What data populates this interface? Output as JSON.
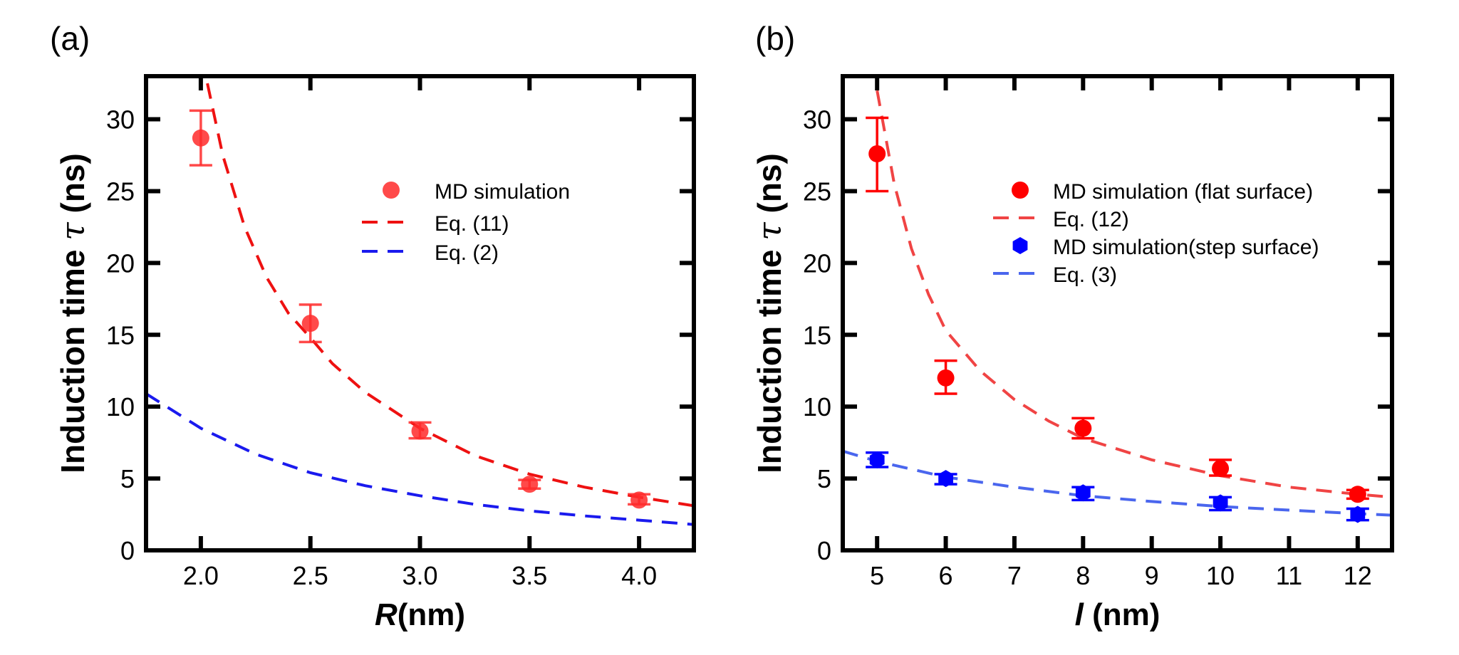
{
  "chart_data": [
    {
      "type": "scatter",
      "panel_label": "(a)",
      "title": "",
      "xlabel_italic": "R",
      "xlabel_rest": "(nm)",
      "ylabel": "Induction time",
      "ylabel_symbol": "τ",
      "ylabel_unit": "(ns)",
      "xlim": [
        1.75,
        4.25
      ],
      "ylim": [
        0,
        33
      ],
      "xticks": [
        2.0,
        2.5,
        3.0,
        3.5,
        4.0
      ],
      "xtick_labels": [
        "2.0",
        "2.5",
        "3.0",
        "3.5",
        "4.0"
      ],
      "yticks": [
        0,
        5,
        10,
        15,
        20,
        25,
        30
      ],
      "ytick_labels": [
        "0",
        "5",
        "10",
        "15",
        "20",
        "25",
        "30"
      ],
      "grid": false,
      "legend_position": "upper-center-right",
      "series": [
        {
          "name": "MD simulation",
          "kind": "points",
          "marker": "circle",
          "color": "#ff2a2a",
          "x": [
            2.0,
            2.5,
            3.0,
            3.5,
            4.0
          ],
          "y": [
            28.7,
            15.8,
            8.3,
            4.6,
            3.5
          ],
          "err_low": [
            26.8,
            14.5,
            7.8,
            4.3,
            3.2
          ],
          "err_high": [
            30.6,
            17.1,
            8.9,
            4.9,
            3.9
          ]
        },
        {
          "name": "Eq. (11)",
          "kind": "dashed-line",
          "color": "#ee1111",
          "x": [
            2.03,
            2.1,
            2.2,
            2.3,
            2.4,
            2.5,
            2.6,
            2.75,
            3.0,
            3.25,
            3.5,
            3.75,
            4.0,
            4.25
          ],
          "y": [
            32.5,
            27.5,
            22.5,
            19.0,
            16.5,
            14.8,
            13.0,
            11.0,
            8.5,
            6.6,
            5.3,
            4.4,
            3.7,
            3.1
          ]
        },
        {
          "name": "Eq. (2)",
          "kind": "dashed-line",
          "color": "#1a1aee",
          "x": [
            1.75,
            2.0,
            2.25,
            2.5,
            2.75,
            3.0,
            3.25,
            3.5,
            3.75,
            4.0,
            4.25
          ],
          "y": [
            10.9,
            8.5,
            6.7,
            5.4,
            4.5,
            3.8,
            3.2,
            2.75,
            2.4,
            2.1,
            1.8
          ]
        }
      ]
    },
    {
      "type": "scatter",
      "panel_label": "(b)",
      "title": "",
      "xlabel_italic": "l",
      "xlabel_rest": " (nm)",
      "ylabel": "Induction time",
      "ylabel_symbol": "τ",
      "ylabel_unit": "(ns)",
      "xlim": [
        4.5,
        12.5
      ],
      "ylim": [
        0,
        33
      ],
      "xticks": [
        5,
        6,
        7,
        8,
        9,
        10,
        11,
        12
      ],
      "xtick_labels": [
        "5",
        "6",
        "7",
        "8",
        "9",
        "10",
        "11",
        "12"
      ],
      "yticks": [
        0,
        5,
        10,
        15,
        20,
        25,
        30
      ],
      "ytick_labels": [
        "0",
        "5",
        "10",
        "15",
        "20",
        "25",
        "30"
      ],
      "grid": false,
      "legend_position": "upper-center-right",
      "series": [
        {
          "name": "MD simulation (flat surface)",
          "kind": "points",
          "marker": "circle",
          "color": "#ff0000",
          "x": [
            5,
            6,
            8,
            10,
            12
          ],
          "y": [
            27.6,
            12.0,
            8.5,
            5.7,
            3.9
          ],
          "err_low": [
            25.0,
            10.9,
            7.8,
            5.2,
            3.6
          ],
          "err_high": [
            30.1,
            13.2,
            9.2,
            6.3,
            4.2
          ]
        },
        {
          "name": "Eq. (12)",
          "kind": "dashed-line",
          "color": "#f04444",
          "x": [
            5.0,
            5.25,
            5.5,
            5.75,
            6.0,
            6.5,
            7.0,
            7.5,
            8.0,
            9.0,
            10.0,
            11.0,
            12.0,
            12.5
          ],
          "y": [
            32.0,
            25.5,
            21.0,
            17.8,
            15.3,
            12.5,
            10.5,
            9.0,
            7.8,
            6.3,
            5.2,
            4.4,
            3.9,
            3.7
          ]
        },
        {
          "name": "MD simulation(step surface)",
          "kind": "points",
          "marker": "hexagon",
          "color": "#0000ff",
          "x": [
            5,
            6,
            8,
            10,
            12
          ],
          "y": [
            6.3,
            5.0,
            4.0,
            3.3,
            2.5
          ],
          "err_low": [
            5.8,
            4.6,
            3.5,
            2.8,
            2.1
          ],
          "err_high": [
            6.8,
            5.3,
            4.4,
            3.7,
            2.9
          ]
        },
        {
          "name": "Eq. (3)",
          "kind": "dashed-line",
          "color": "#4a66ee",
          "x": [
            4.5,
            5.0,
            6.0,
            7.0,
            8.0,
            9.0,
            10.0,
            11.0,
            12.0,
            12.5
          ],
          "y": [
            6.9,
            6.2,
            5.1,
            4.4,
            3.8,
            3.4,
            3.05,
            2.8,
            2.55,
            2.45
          ]
        }
      ]
    }
  ]
}
